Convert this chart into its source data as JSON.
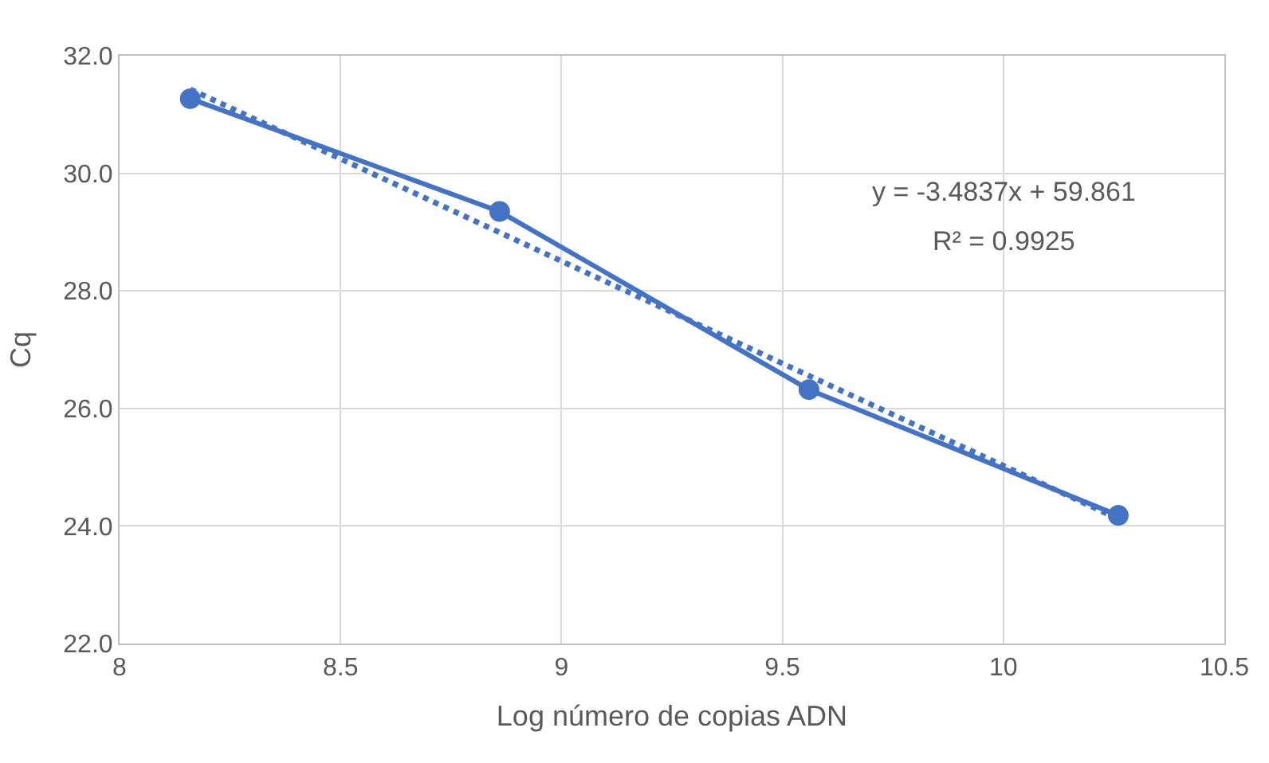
{
  "chart_data": {
    "type": "line",
    "xlabel": "Log número de copias ADN",
    "ylabel": "Cq",
    "xlim": [
      8,
      10.5
    ],
    "xticks": [
      8,
      8.5,
      9,
      9.5,
      10,
      10.5
    ],
    "ylim": [
      22,
      32
    ],
    "yticks": [
      {
        "value": 22,
        "label": "22.0"
      },
      {
        "value": 24,
        "label": "24.0"
      },
      {
        "value": 26,
        "label": "26.0"
      },
      {
        "value": 28,
        "label": "28.0"
      },
      {
        "value": 30,
        "label": "30.0"
      },
      {
        "value": 32,
        "label": "32.0"
      }
    ],
    "grid": true,
    "series": [
      {
        "color": "#4472c4",
        "x": [
          8.16,
          8.86,
          9.56,
          10.26
        ],
        "values": [
          31.27,
          29.35,
          26.32,
          24.18
        ],
        "marker": "circle",
        "line_style": "solid"
      },
      {
        "type": "line",
        "color": "#4472c4",
        "x": [
          8.16,
          10.26
        ],
        "values": [
          31.43,
          24.12
        ],
        "marker": "none",
        "line_style": "dotted"
      }
    ],
    "annotations": [
      "y = -3.4837x + 59.861",
      "R² = 0.9925"
    ]
  }
}
